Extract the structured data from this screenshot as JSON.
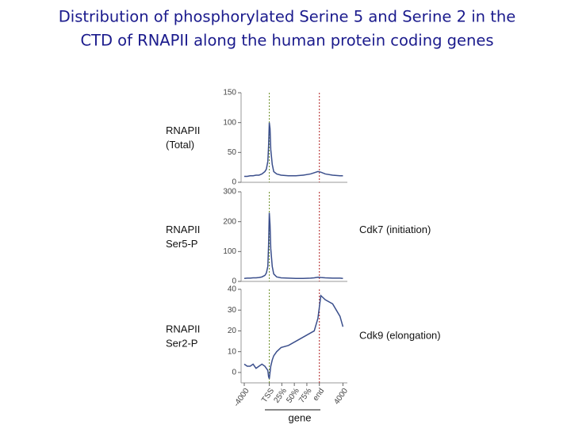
{
  "title": [
    "Distribution of phosphorylated Serine 5 and Serine 2 in the",
    "CTD of RNAPII along the human protein coding genes"
  ],
  "chart_data": [
    {
      "type": "line",
      "label": [
        "RNAPII",
        "(Total)"
      ],
      "color": "#3b4f8c",
      "xlim": [
        0,
        140
      ],
      "ylim": [
        0,
        150
      ],
      "yticks": [
        0,
        50,
        100,
        150
      ],
      "x": [
        0,
        4,
        8,
        12,
        16,
        20,
        24,
        28,
        30,
        32,
        33,
        34,
        35,
        36,
        38,
        40,
        44,
        50,
        60,
        70,
        80,
        90,
        95,
        100,
        104,
        110,
        120,
        130,
        134
      ],
      "values": [
        10,
        10,
        11,
        11,
        12,
        12,
        14,
        18,
        22,
        35,
        60,
        100,
        90,
        55,
        30,
        18,
        14,
        12,
        11,
        11,
        12,
        14,
        16,
        18,
        17,
        14,
        12,
        11,
        11
      ]
    },
    {
      "type": "line",
      "label": [
        "RNAPII",
        "Ser5-P"
      ],
      "annotation": "Cdk7 (initiation)",
      "color": "#3b4f8c",
      "xlim": [
        0,
        140
      ],
      "ylim": [
        0,
        300
      ],
      "yticks": [
        0,
        100,
        200,
        300
      ],
      "x": [
        0,
        4,
        8,
        12,
        16,
        20,
        24,
        28,
        30,
        32,
        33,
        34,
        35,
        36,
        38,
        40,
        44,
        50,
        60,
        70,
        80,
        90,
        95,
        100,
        104,
        110,
        120,
        130,
        134
      ],
      "values": [
        10,
        11,
        11,
        12,
        12,
        13,
        15,
        20,
        28,
        50,
        120,
        230,
        190,
        110,
        50,
        25,
        15,
        12,
        11,
        10,
        10,
        11,
        12,
        14,
        13,
        12,
        11,
        11,
        10
      ]
    },
    {
      "type": "line",
      "label": [
        "RNAPII",
        "Ser2-P"
      ],
      "annotation": "Cdk9 (elongation)",
      "xlabel": "gene",
      "color": "#3b4f8c",
      "xlim": [
        0,
        140
      ],
      "ylim": [
        -5,
        40
      ],
      "yticks": [
        0,
        10,
        20,
        30,
        40
      ],
      "xticks": [
        {
          "value": 0,
          "label": "-4000"
        },
        {
          "value": 34,
          "label": "TSS"
        },
        {
          "value": 51,
          "label": "25%"
        },
        {
          "value": 68,
          "label": "50%"
        },
        {
          "value": 85,
          "label": "75%"
        },
        {
          "value": 102,
          "label": "end"
        },
        {
          "value": 134,
          "label": "4000"
        }
      ],
      "x": [
        0,
        4,
        8,
        12,
        16,
        20,
        24,
        28,
        30,
        32,
        33,
        34,
        35,
        36,
        38,
        40,
        44,
        50,
        60,
        70,
        80,
        90,
        95,
        100,
        104,
        110,
        120,
        130,
        134
      ],
      "values": [
        4,
        3,
        3,
        4,
        2,
        3,
        4,
        3,
        2,
        1,
        -2,
        -3,
        0,
        3,
        6,
        8,
        10,
        12,
        13,
        15,
        17,
        19,
        20,
        26,
        37,
        35,
        33,
        27,
        22
      ]
    }
  ]
}
